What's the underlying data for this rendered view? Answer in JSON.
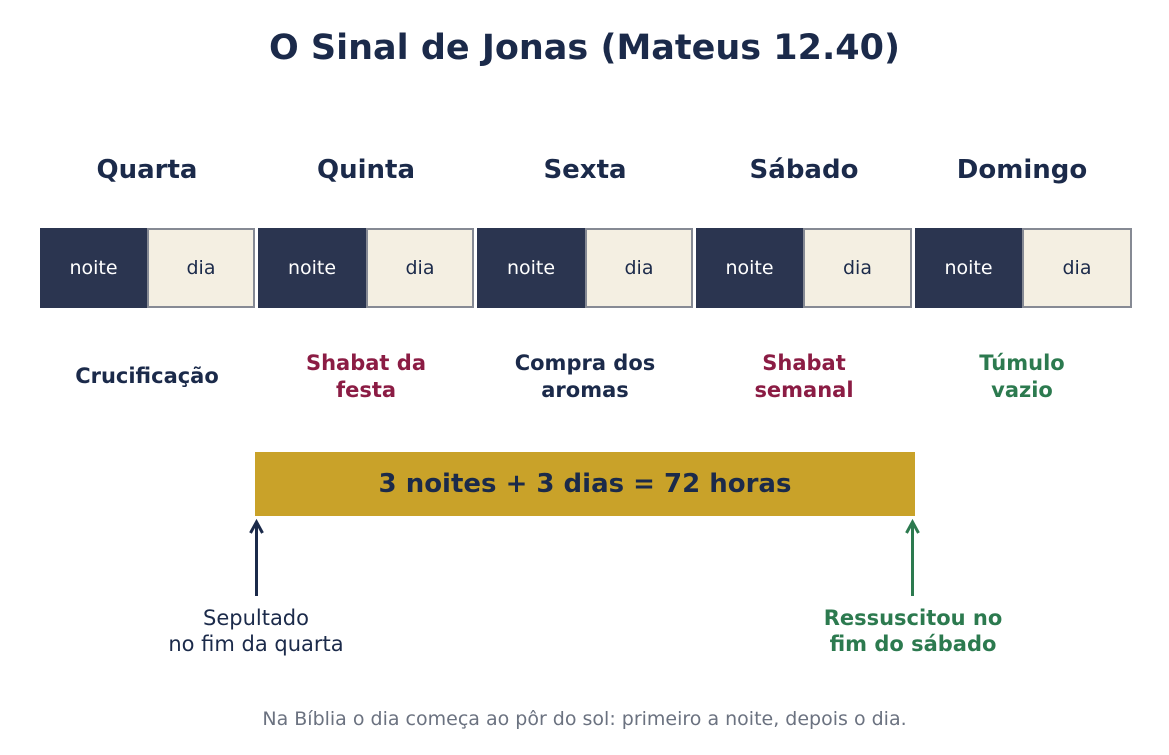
{
  "title": "O Sinal de Jonas (Mateus 12.40)",
  "days": [
    {
      "name": "Quarta",
      "night": "noite",
      "day": "dia",
      "event_lines": [
        "Crucificação"
      ],
      "event_color": "navy"
    },
    {
      "name": "Quinta",
      "night": "noite",
      "day": "dia",
      "event_lines": [
        "Shabat da",
        "festa"
      ],
      "event_color": "red"
    },
    {
      "name": "Sexta",
      "night": "noite",
      "day": "dia",
      "event_lines": [
        "Compra dos",
        "aromas"
      ],
      "event_color": "navy"
    },
    {
      "name": "Sábado",
      "night": "noite",
      "day": "dia",
      "event_lines": [
        "Shabat",
        "semanal"
      ],
      "event_color": "red"
    },
    {
      "name": "Domingo",
      "night": "noite",
      "day": "dia",
      "event_lines": [
        "Túmulo",
        "vazio"
      ],
      "event_color": "green"
    }
  ],
  "total": "3 noites + 3 dias = 72 horas",
  "start_note": [
    "Sepultado",
    "no fim da quarta"
  ],
  "end_note": [
    "Ressuscitou no",
    "fim do sábado"
  ],
  "footer": "Na Bíblia o dia começa ao pôr do sol: primeiro a noite, depois o dia.",
  "colors": {
    "navy": "#1b2a4a",
    "night_fill": "#2b3550",
    "day_fill": "#f4efe2",
    "red": "#8b1c44",
    "green": "#2c7a4f",
    "gold": "#c9a229"
  }
}
